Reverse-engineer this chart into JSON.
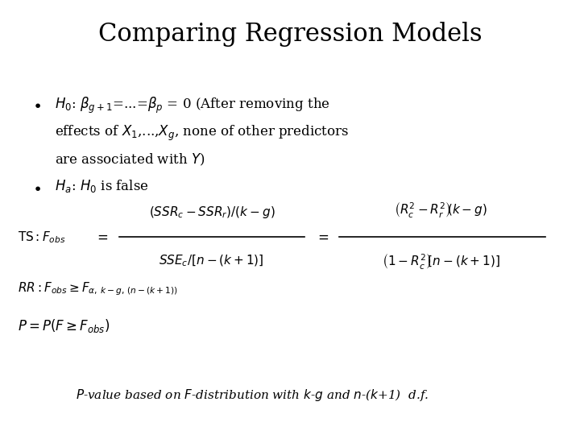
{
  "title": "Comparing Regression Models",
  "title_fontsize": 22,
  "background_color": "#ffffff",
  "text_color": "#000000",
  "fs_bullet": 12,
  "fs_formula": 11,
  "fs_footnote": 11
}
